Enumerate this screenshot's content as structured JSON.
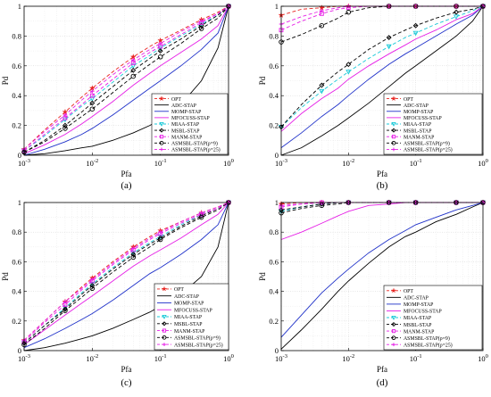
{
  "panels_order": [
    "a",
    "b",
    "c",
    "d"
  ],
  "legend_entries": [
    {
      "key": "OPT",
      "label": "OPT",
      "color": "#e8231f",
      "marker": "star",
      "dash": "dash"
    },
    {
      "key": "ADC",
      "label": "ADC-STAP",
      "color": "#000000",
      "marker": "none",
      "dash": "solid"
    },
    {
      "key": "MOMP",
      "label": "MOMP-STAP",
      "color": "#1f31c9",
      "marker": "none",
      "dash": "solid"
    },
    {
      "key": "MFOCUSS",
      "label": "MFOCUSS-STAP",
      "color": "#e61ee6",
      "marker": "none",
      "dash": "solid"
    },
    {
      "key": "MIAA",
      "label": "MIAA-STAP",
      "color": "#18c9d8",
      "marker": "triangle",
      "dash": "dash"
    },
    {
      "key": "MSBL",
      "label": "MSBL-STAP",
      "color": "#000000",
      "marker": "diamond",
      "dash": "dash"
    },
    {
      "key": "MANM",
      "label": "MANM-STAP",
      "color": "#e61ee6",
      "marker": "square",
      "dash": "dash"
    },
    {
      "key": "ASMSBL9",
      "label": "ASMSBL-STAP(ρ=9)",
      "color": "#000000",
      "marker": "circle",
      "dash": "dash"
    },
    {
      "key": "ASMSBL25",
      "label": "ASMSBL-STAP(ρ=25)",
      "color": "#e61ee6",
      "marker": "plus",
      "dash": "dash"
    }
  ],
  "chart_data": [
    {
      "id": "a",
      "type": "line",
      "caption": "(a)",
      "xlabel": "Pfa",
      "ylabel": "Pd",
      "xscale": "log",
      "xlim": [
        0.001,
        1
      ],
      "ylim": [
        0,
        1
      ],
      "xticks": [
        "10^-3",
        "10^-2",
        "10^-1",
        "10^0"
      ],
      "yticks": [
        "0",
        "0.2",
        "0.4",
        "0.6",
        "0.8",
        "1"
      ],
      "grid": true,
      "legend_position": "bottom-right",
      "x": [
        0.001,
        0.002,
        0.004,
        0.007,
        0.01,
        0.02,
        0.04,
        0.07,
        0.1,
        0.2,
        0.4,
        0.7,
        1
      ],
      "series": [
        {
          "key": "OPT",
          "values": [
            0.04,
            0.17,
            0.29,
            0.39,
            0.45,
            0.56,
            0.66,
            0.73,
            0.77,
            0.84,
            0.91,
            0.96,
            1.0
          ]
        },
        {
          "key": "ADC",
          "values": [
            0.0,
            0.01,
            0.03,
            0.05,
            0.06,
            0.1,
            0.15,
            0.2,
            0.24,
            0.34,
            0.5,
            0.72,
            1.0
          ]
        },
        {
          "key": "MOMP",
          "values": [
            0.0,
            0.04,
            0.09,
            0.14,
            0.18,
            0.27,
            0.37,
            0.45,
            0.5,
            0.6,
            0.71,
            0.82,
            1.0
          ]
        },
        {
          "key": "MFOCUSS",
          "values": [
            0.01,
            0.07,
            0.14,
            0.21,
            0.26,
            0.36,
            0.47,
            0.55,
            0.6,
            0.69,
            0.78,
            0.87,
            1.0
          ]
        },
        {
          "key": "MIAA",
          "values": [
            0.03,
            0.13,
            0.24,
            0.33,
            0.38,
            0.49,
            0.6,
            0.67,
            0.72,
            0.8,
            0.88,
            0.94,
            1.0
          ]
        },
        {
          "key": "MSBL",
          "values": [
            0.02,
            0.1,
            0.2,
            0.29,
            0.35,
            0.46,
            0.57,
            0.65,
            0.7,
            0.78,
            0.87,
            0.94,
            1.0
          ]
        },
        {
          "key": "MANM",
          "values": [
            0.03,
            0.14,
            0.25,
            0.34,
            0.4,
            0.51,
            0.62,
            0.69,
            0.73,
            0.81,
            0.89,
            0.95,
            1.0
          ]
        },
        {
          "key": "ASMSBL9",
          "values": [
            0.02,
            0.09,
            0.18,
            0.26,
            0.31,
            0.42,
            0.53,
            0.61,
            0.66,
            0.75,
            0.85,
            0.92,
            1.0
          ]
        },
        {
          "key": "ASMSBL25",
          "values": [
            0.04,
            0.16,
            0.27,
            0.37,
            0.43,
            0.54,
            0.64,
            0.71,
            0.75,
            0.83,
            0.9,
            0.95,
            1.0
          ]
        }
      ]
    },
    {
      "id": "b",
      "type": "line",
      "caption": "(b)",
      "xlabel": "Pfa",
      "ylabel": "Pd",
      "xscale": "log",
      "xlim": [
        0.001,
        1
      ],
      "ylim": [
        0,
        1
      ],
      "xticks": [
        "10^-3",
        "10^-2",
        "10^-1",
        "10^0"
      ],
      "yticks": [
        "0",
        "0.2",
        "0.4",
        "0.6",
        "0.8",
        "1"
      ],
      "grid": true,
      "legend_position": "bottom-right",
      "x": [
        0.001,
        0.002,
        0.004,
        0.007,
        0.01,
        0.02,
        0.04,
        0.07,
        0.1,
        0.2,
        0.4,
        0.7,
        1
      ],
      "series": [
        {
          "key": "OPT",
          "values": [
            0.94,
            0.98,
            0.99,
            1.0,
            1.0,
            1.0,
            1.0,
            1.0,
            1.0,
            1.0,
            1.0,
            1.0,
            1.0
          ]
        },
        {
          "key": "ADC",
          "values": [
            0.0,
            0.05,
            0.13,
            0.2,
            0.25,
            0.35,
            0.46,
            0.55,
            0.6,
            0.7,
            0.8,
            0.9,
            1.0
          ]
        },
        {
          "key": "MOMP",
          "values": [
            0.05,
            0.15,
            0.26,
            0.34,
            0.4,
            0.51,
            0.61,
            0.68,
            0.72,
            0.8,
            0.88,
            0.94,
            1.0
          ]
        },
        {
          "key": "MFOCUSS",
          "values": [
            0.16,
            0.28,
            0.38,
            0.45,
            0.51,
            0.6,
            0.68,
            0.74,
            0.78,
            0.84,
            0.91,
            0.95,
            1.0
          ]
        },
        {
          "key": "MIAA",
          "values": [
            0.19,
            0.32,
            0.43,
            0.51,
            0.56,
            0.65,
            0.73,
            0.79,
            0.82,
            0.88,
            0.93,
            0.97,
            1.0
          ]
        },
        {
          "key": "MSBL",
          "values": [
            0.19,
            0.34,
            0.47,
            0.56,
            0.61,
            0.71,
            0.79,
            0.84,
            0.87,
            0.92,
            0.96,
            0.98,
            1.0
          ]
        },
        {
          "key": "MANM",
          "values": [
            0.84,
            0.9,
            0.95,
            0.98,
            0.99,
            1.0,
            1.0,
            1.0,
            1.0,
            1.0,
            1.0,
            1.0,
            1.0
          ]
        },
        {
          "key": "ASMSBL9",
          "values": [
            0.76,
            0.81,
            0.87,
            0.92,
            0.96,
            0.99,
            1.0,
            1.0,
            1.0,
            1.0,
            1.0,
            1.0,
            1.0
          ]
        },
        {
          "key": "ASMSBL25",
          "values": [
            0.88,
            0.93,
            0.97,
            0.99,
            1.0,
            1.0,
            1.0,
            1.0,
            1.0,
            1.0,
            1.0,
            1.0,
            1.0
          ]
        }
      ]
    },
    {
      "id": "c",
      "type": "line",
      "caption": "(c)",
      "xlabel": "Pfa",
      "ylabel": "Pd",
      "xscale": "log",
      "xlim": [
        0.001,
        1
      ],
      "ylim": [
        0,
        1
      ],
      "xticks": [
        "10^-3",
        "10^-2",
        "10^-1",
        "10^0"
      ],
      "yticks": [
        "0",
        "0.2",
        "0.4",
        "0.6",
        "0.8",
        "1"
      ],
      "grid": true,
      "legend_position": "bottom-right",
      "x": [
        0.001,
        0.002,
        0.004,
        0.007,
        0.01,
        0.02,
        0.04,
        0.07,
        0.1,
        0.2,
        0.4,
        0.7,
        1
      ],
      "series": [
        {
          "key": "OPT",
          "values": [
            0.07,
            0.2,
            0.33,
            0.43,
            0.49,
            0.6,
            0.7,
            0.77,
            0.81,
            0.87,
            0.93,
            0.97,
            1.0
          ]
        },
        {
          "key": "ADC",
          "values": [
            0.0,
            0.02,
            0.05,
            0.08,
            0.1,
            0.15,
            0.21,
            0.26,
            0.3,
            0.38,
            0.5,
            0.7,
            1.0
          ]
        },
        {
          "key": "MOMP",
          "values": [
            0.02,
            0.08,
            0.15,
            0.21,
            0.25,
            0.34,
            0.44,
            0.52,
            0.56,
            0.65,
            0.75,
            0.85,
            1.0
          ]
        },
        {
          "key": "MFOCUSS",
          "values": [
            0.04,
            0.14,
            0.24,
            0.32,
            0.37,
            0.47,
            0.57,
            0.64,
            0.68,
            0.76,
            0.85,
            0.92,
            1.0
          ]
        },
        {
          "key": "MIAA",
          "values": [
            0.05,
            0.17,
            0.29,
            0.39,
            0.45,
            0.56,
            0.66,
            0.73,
            0.77,
            0.85,
            0.92,
            0.96,
            1.0
          ]
        },
        {
          "key": "MSBL",
          "values": [
            0.05,
            0.17,
            0.28,
            0.38,
            0.44,
            0.55,
            0.65,
            0.72,
            0.76,
            0.84,
            0.91,
            0.96,
            1.0
          ]
        },
        {
          "key": "MANM",
          "values": [
            0.06,
            0.19,
            0.31,
            0.41,
            0.47,
            0.58,
            0.68,
            0.75,
            0.79,
            0.86,
            0.92,
            0.96,
            1.0
          ]
        },
        {
          "key": "ASMSBL9",
          "values": [
            0.04,
            0.15,
            0.27,
            0.36,
            0.42,
            0.53,
            0.63,
            0.7,
            0.75,
            0.83,
            0.9,
            0.95,
            1.0
          ]
        },
        {
          "key": "ASMSBL25",
          "values": [
            0.07,
            0.2,
            0.33,
            0.42,
            0.48,
            0.59,
            0.69,
            0.76,
            0.8,
            0.87,
            0.93,
            0.97,
            1.0
          ]
        }
      ]
    },
    {
      "id": "d",
      "type": "line",
      "caption": "(d)",
      "xlabel": "Pfa",
      "ylabel": "Pd",
      "xscale": "log",
      "xlim": [
        0.001,
        1
      ],
      "ylim": [
        0,
        1
      ],
      "xticks": [
        "10^-3",
        "10^-2",
        "10^-1",
        "10^0"
      ],
      "yticks": [
        "0",
        "0.2",
        "0.4",
        "0.6",
        "0.8",
        "1"
      ],
      "grid": true,
      "legend_position": "bottom-right",
      "x": [
        0.001,
        0.002,
        0.004,
        0.007,
        0.01,
        0.02,
        0.04,
        0.07,
        0.1,
        0.2,
        0.4,
        0.7,
        1
      ],
      "series": [
        {
          "key": "OPT",
          "values": [
            0.99,
            1.0,
            1.0,
            1.0,
            1.0,
            1.0,
            1.0,
            1.0,
            1.0,
            1.0,
            1.0,
            1.0,
            1.0
          ]
        },
        {
          "key": "ADC",
          "values": [
            0.01,
            0.14,
            0.28,
            0.4,
            0.47,
            0.59,
            0.7,
            0.77,
            0.8,
            0.87,
            0.92,
            0.97,
            1.0
          ]
        },
        {
          "key": "MOMP",
          "values": [
            0.09,
            0.24,
            0.39,
            0.49,
            0.55,
            0.66,
            0.75,
            0.81,
            0.85,
            0.9,
            0.95,
            0.98,
            1.0
          ]
        },
        {
          "key": "MFOCUSS",
          "values": [
            0.75,
            0.8,
            0.86,
            0.91,
            0.94,
            0.98,
            0.99,
            1.0,
            1.0,
            1.0,
            1.0,
            1.0,
            1.0
          ]
        },
        {
          "key": "MIAA",
          "values": [
            0.94,
            0.97,
            0.99,
            1.0,
            1.0,
            1.0,
            1.0,
            1.0,
            1.0,
            1.0,
            1.0,
            1.0,
            1.0
          ]
        },
        {
          "key": "MSBL",
          "values": [
            0.95,
            0.97,
            0.99,
            1.0,
            1.0,
            1.0,
            1.0,
            1.0,
            1.0,
            1.0,
            1.0,
            1.0,
            1.0
          ]
        },
        {
          "key": "MANM",
          "values": [
            0.97,
            0.99,
            1.0,
            1.0,
            1.0,
            1.0,
            1.0,
            1.0,
            1.0,
            1.0,
            1.0,
            1.0,
            1.0
          ]
        },
        {
          "key": "ASMSBL9",
          "values": [
            0.93,
            0.96,
            0.98,
            0.99,
            1.0,
            1.0,
            1.0,
            1.0,
            1.0,
            1.0,
            1.0,
            1.0,
            1.0
          ]
        },
        {
          "key": "ASMSBL25",
          "values": [
            0.98,
            0.99,
            1.0,
            1.0,
            1.0,
            1.0,
            1.0,
            1.0,
            1.0,
            1.0,
            1.0,
            1.0,
            1.0
          ]
        }
      ]
    }
  ]
}
